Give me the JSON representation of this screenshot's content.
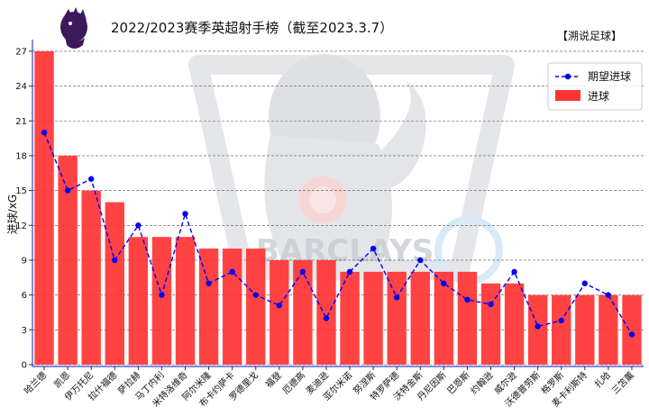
{
  "chart_data": {
    "type": "bar",
    "title": "2022/2023赛季英超射手榜（截至2023.3.7）",
    "source": "【溯说足球】",
    "ylabel": "进球/xG",
    "xlabel": "",
    "ylim": [
      0,
      28
    ],
    "yticks": [
      0,
      3,
      6,
      9,
      12,
      15,
      18,
      21,
      24,
      27
    ],
    "grid": "horizontal dashed",
    "legend_position": "top-right",
    "categories": [
      "哈兰德",
      "凯恩",
      "伊万托尼",
      "拉什福德",
      "萨拉赫",
      "马丁内利",
      "米特洛维奇",
      "阿尔米隆",
      "布卡约萨卡",
      "罗德里戈",
      "福登",
      "厄德高",
      "麦迪逊",
      "亚尔米诺",
      "努涅斯",
      "特罗萨德",
      "沃特金斯",
      "丹尼因斯",
      "巴恩斯",
      "约翰逊",
      "威尔逊",
      "沃德普劳斯",
      "格罗斯",
      "麦卡利斯特",
      "扎哈",
      "三笘薫"
    ],
    "series": [
      {
        "name": "期望进球",
        "type": "line",
        "color": "#0000ee",
        "style": "dashed with circle markers",
        "values": [
          20,
          15,
          16,
          9,
          12,
          6,
          13,
          7,
          8,
          6,
          5.1,
          8,
          4,
          8,
          10,
          5.8,
          9,
          7,
          5.6,
          5.2,
          8,
          3.3,
          3.8,
          7,
          6,
          2.6
        ]
      },
      {
        "name": "进球",
        "type": "bar",
        "color": "#ff3333",
        "values": [
          27,
          18,
          15,
          14,
          11,
          11,
          11,
          10,
          10,
          10,
          9,
          9,
          9,
          8,
          8,
          8,
          8,
          8,
          8,
          7,
          7,
          6,
          6,
          6,
          6,
          6
        ]
      }
    ]
  },
  "watermark": {
    "brand": "BARCLAYS",
    "logo_icon": "premier-league-lion-icon",
    "colors": {
      "logo_purple": "#3d195b",
      "watermark_gray": "#d7d9dd"
    }
  }
}
